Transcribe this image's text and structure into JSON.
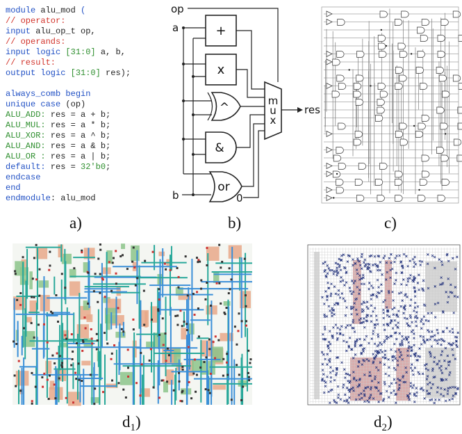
{
  "code": {
    "lines": [
      [
        {
          "text": "module",
          "color": "#1f4fc4"
        },
        {
          "text": " alu_mod ",
          "color": "#222222"
        },
        {
          "text": "(",
          "color": "#1f4fc4"
        }
      ],
      [
        {
          "text": "  // operator:",
          "color": "#d2332a"
        }
      ],
      [
        {
          "text": "  input",
          "color": "#1f4fc4"
        },
        {
          "text": "  alu_op_t     op,",
          "color": "#222222"
        }
      ],
      [
        {
          "text": "  // operands:",
          "color": "#d2332a"
        }
      ],
      [
        {
          "text": "  input  logic ",
          "color": "#1f4fc4"
        },
        {
          "text": "[31:0]",
          "color": "#2f8f2f"
        },
        {
          "text": " a, b,",
          "color": "#222222"
        }
      ],
      [
        {
          "text": "  // result:",
          "color": "#d2332a"
        }
      ],
      [
        {
          "text": "  output logic ",
          "color": "#1f4fc4"
        },
        {
          "text": "[31:0]",
          "color": "#2f8f2f"
        },
        {
          "text": " res);",
          "color": "#222222"
        }
      ],
      [
        {
          "text": "  always_comb begin",
          "color": "#1f4fc4"
        }
      ],
      [
        {
          "text": "    unique case",
          "color": "#1f4fc4"
        },
        {
          "text": " (op)",
          "color": "#222222"
        }
      ],
      [
        {
          "text": "      ALU_ADD:",
          "color": "#2f8f2f"
        },
        {
          "text": " res = a + b;",
          "color": "#222222"
        }
      ],
      [
        {
          "text": "      ALU_MUL:",
          "color": "#2f8f2f"
        },
        {
          "text": " res = a * b;",
          "color": "#222222"
        }
      ],
      [
        {
          "text": "      ALU_XOR:",
          "color": "#2f8f2f"
        },
        {
          "text": " res = a ^ b;",
          "color": "#222222"
        }
      ],
      [
        {
          "text": "      ALU_AND:",
          "color": "#2f8f2f"
        },
        {
          "text": " res = a & b;",
          "color": "#222222"
        }
      ],
      [
        {
          "text": "      ALU_OR :",
          "color": "#2f8f2f"
        },
        {
          "text": " res = a | b;",
          "color": "#222222"
        }
      ],
      [
        {
          "text": "      default:",
          "color": "#1f4fc4"
        },
        {
          "text": " res = ",
          "color": "#222222"
        },
        {
          "text": "32'b0",
          "color": "#2f8f2f"
        },
        {
          "text": ";",
          "color": "#222222"
        }
      ],
      [
        {
          "text": "    endcase",
          "color": "#1f4fc4"
        }
      ],
      [
        {
          "text": "  end",
          "color": "#1f4fc4"
        }
      ],
      [
        {
          "text": "endmodule",
          "color": "#1f4fc4"
        },
        {
          "text": ": alu_mod",
          "color": "#222222"
        }
      ]
    ]
  },
  "schematic": {
    "op": "op",
    "a": "a",
    "b": "b",
    "add": "+",
    "mul": "x",
    "xor": "^",
    "and": "&",
    "or": "or",
    "mux": [
      "m",
      "u",
      "x"
    ],
    "res": "res",
    "zero": "0"
  },
  "captions": {
    "a": "a)",
    "b": "b)",
    "c": "c)",
    "d1": {
      "letter": "d",
      "sub": "1",
      "close": ")"
    },
    "d2": {
      "letter": "d",
      "sub": "2",
      "close": ")"
    }
  }
}
